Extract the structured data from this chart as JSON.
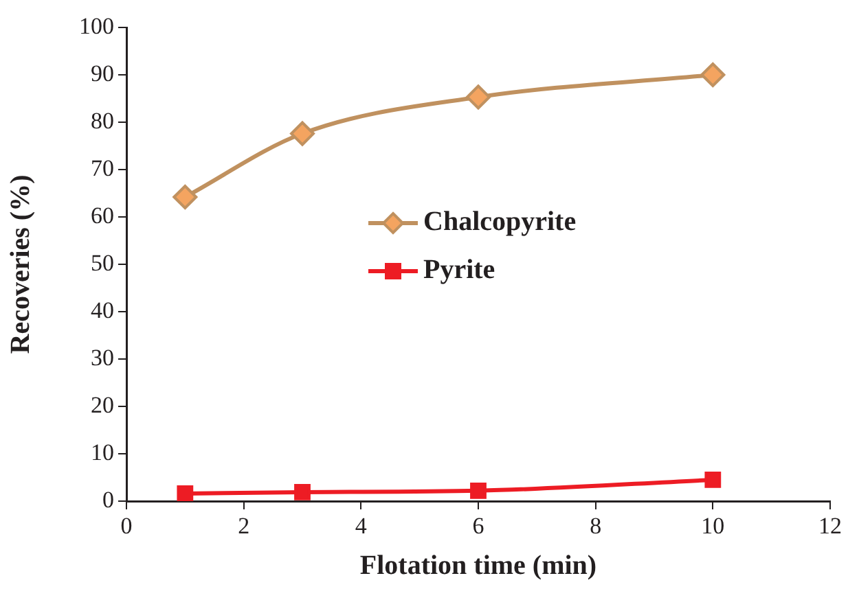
{
  "chart_data": {
    "type": "line",
    "xlabel": "Flotation time (min)",
    "ylabel": "Recoveries (%)",
    "x": [
      1,
      3,
      6,
      10
    ],
    "series": [
      {
        "name": "Chalcopyrite",
        "color": "#c0915f",
        "marker": "diamond",
        "values": [
          64.2,
          77.6,
          85.3,
          90
        ]
      },
      {
        "name": "Pyrite",
        "color": "#ed1c24",
        "marker": "square",
        "values": [
          1.6,
          1.9,
          2.2,
          4.5
        ]
      }
    ],
    "xlim": [
      0,
      12
    ],
    "xticks": [
      0,
      2,
      4,
      6,
      8,
      10,
      12
    ],
    "ylim": [
      0,
      100
    ],
    "yticks": [
      0,
      10,
      20,
      30,
      40,
      50,
      60,
      70,
      80,
      90,
      100
    ],
    "grid": false,
    "legend": "center"
  }
}
